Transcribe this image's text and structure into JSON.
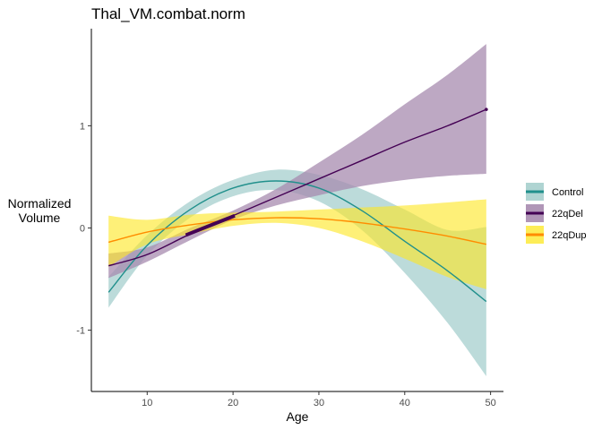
{
  "chart_data": {
    "type": "line",
    "title": "Thal_VM.combat.norm",
    "xlabel": "Age",
    "ylabel_lines": [
      "Normalized",
      "Volume"
    ],
    "xlim": [
      3.5,
      51.5
    ],
    "ylim": [
      -1.6,
      1.95
    ],
    "x_ticks": [
      10,
      20,
      30,
      40,
      50
    ],
    "y_ticks": [
      -1,
      0,
      1
    ],
    "grid": false,
    "legend_position": "right",
    "series": [
      {
        "name": "Control",
        "color": "#21908C",
        "fill": "#A6CFCD",
        "band_opacity": 0.75,
        "x": [
          5.5,
          10,
          15,
          20,
          25,
          30,
          35,
          40,
          45,
          49.5
        ],
        "fit": [
          -0.63,
          -0.17,
          0.18,
          0.39,
          0.46,
          0.39,
          0.17,
          -0.13,
          -0.42,
          -0.72
        ],
        "lower": [
          -0.78,
          -0.27,
          0.1,
          0.31,
          0.37,
          0.26,
          -0.02,
          -0.44,
          -0.93,
          -1.45
        ],
        "upper": [
          -0.48,
          -0.07,
          0.26,
          0.47,
          0.57,
          0.52,
          0.38,
          0.18,
          -0.02,
          0.01
        ]
      },
      {
        "name": "22qDel",
        "color": "#440154",
        "fill": "#A78BAF",
        "band_opacity": 0.75,
        "x": [
          5.5,
          10,
          15,
          20,
          25,
          30,
          35,
          40,
          45,
          49.5
        ],
        "fit": [
          -0.37,
          -0.26,
          -0.06,
          0.12,
          0.3,
          0.48,
          0.66,
          0.84,
          1.0,
          1.16
        ],
        "lower": [
          -0.49,
          -0.33,
          -0.12,
          0.08,
          0.22,
          0.32,
          0.41,
          0.47,
          0.51,
          0.53
        ],
        "upper": [
          -0.25,
          -0.19,
          0.0,
          0.17,
          0.38,
          0.64,
          0.91,
          1.21,
          1.5,
          1.8
        ]
      },
      {
        "name": "22qDup",
        "color": "#FF8C00",
        "fill": "#FDE725",
        "band_opacity": 0.62,
        "x": [
          5.5,
          10,
          15,
          20,
          25,
          30,
          35,
          40,
          45,
          49.5
        ],
        "fit": [
          -0.14,
          -0.04,
          0.03,
          0.08,
          0.1,
          0.09,
          0.05,
          -0.01,
          -0.08,
          -0.16
        ],
        "lower": [
          -0.38,
          -0.16,
          -0.06,
          0.02,
          0.05,
          0.0,
          -0.13,
          -0.3,
          -0.48,
          -0.6
        ],
        "upper": [
          0.12,
          0.08,
          0.13,
          0.15,
          0.16,
          0.18,
          0.2,
          0.22,
          0.25,
          0.28
        ]
      }
    ],
    "highlight": {
      "series": "22qDel",
      "x": [
        14.5,
        20.2
      ],
      "y": [
        -0.07,
        0.12
      ]
    }
  }
}
